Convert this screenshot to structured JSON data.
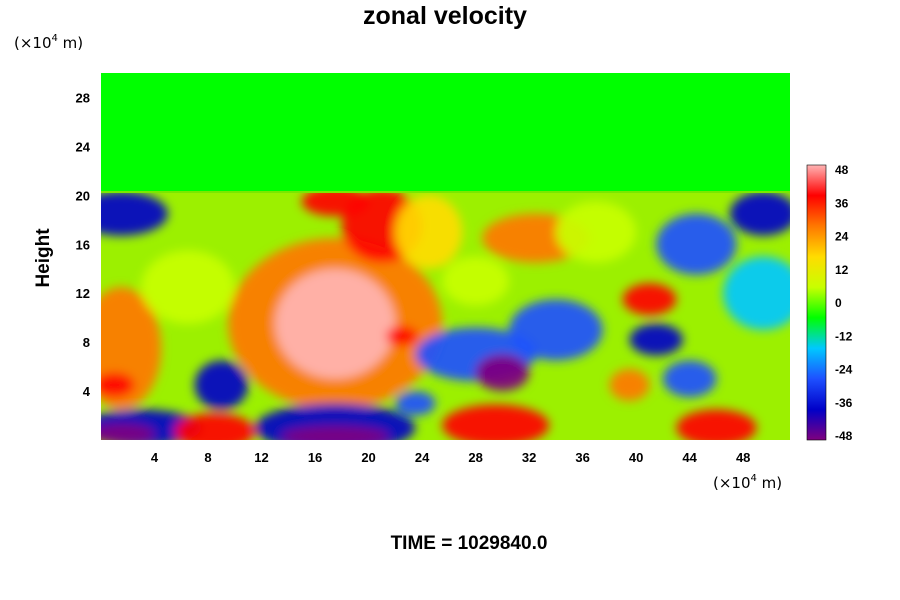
{
  "chart_data": {
    "type": "heatmap",
    "title": "zonal velocity",
    "ylabel": "Height",
    "xlabel": "",
    "x_unit": {
      "base": "(×10",
      "exp": "4",
      "tail": " m)"
    },
    "y_unit": {
      "base": "(×10",
      "exp": "4",
      "tail": " m)"
    },
    "x_ticks": [
      "4",
      "8",
      "12",
      "16",
      "20",
      "24",
      "28",
      "32",
      "36",
      "40",
      "44",
      "48"
    ],
    "y_ticks": [
      "4",
      "8",
      "12",
      "16",
      "20",
      "24",
      "28"
    ],
    "xlim": [
      0,
      51.5
    ],
    "ylim": [
      0,
      30
    ],
    "field_top_height": 20.5,
    "uniform_value_above": 0,
    "colorbar": {
      "ticks": [
        "48",
        "36",
        "24",
        "12",
        "0",
        "-12",
        "-24",
        "-36",
        "-48"
      ],
      "range": [
        -48,
        48
      ],
      "colors": [
        "#7f007f",
        "#0000c8",
        "#1e50ff",
        "#00c8ff",
        "#00ff00",
        "#c8ff00",
        "#ffdc00",
        "#ff7800",
        "#ff0000",
        "#ffb4b4"
      ]
    },
    "blobs": [
      {
        "x": 17.5,
        "y": 9.5,
        "rx": 4.5,
        "ry": 4.5,
        "value": 46
      },
      {
        "x": 17.5,
        "y": 9.5,
        "rx": 8,
        "ry": 7,
        "value": 30
      },
      {
        "x": 21,
        "y": 17.5,
        "rx": 3,
        "ry": 3,
        "value": 34
      },
      {
        "x": 17.5,
        "y": 19.5,
        "rx": 2.5,
        "ry": 1.2,
        "value": 40
      },
      {
        "x": 24.5,
        "y": 17,
        "rx": 2.5,
        "ry": 3,
        "value": 18
      },
      {
        "x": 32.5,
        "y": 16.5,
        "rx": 4,
        "ry": 2,
        "value": 28
      },
      {
        "x": 22.5,
        "y": 8.5,
        "rx": 1.2,
        "ry": 0.8,
        "value": 34
      },
      {
        "x": 28,
        "y": 7,
        "rx": 4.5,
        "ry": 2.2,
        "value": -30
      },
      {
        "x": 30,
        "y": 5.5,
        "rx": 2,
        "ry": 1.5,
        "value": -48
      },
      {
        "x": 34,
        "y": 9,
        "rx": 3.5,
        "ry": 2.5,
        "value": -22
      },
      {
        "x": 41,
        "y": 11.5,
        "rx": 2,
        "ry": 1.3,
        "value": 32
      },
      {
        "x": 41.5,
        "y": 8.2,
        "rx": 2,
        "ry": 1.3,
        "value": -38
      },
      {
        "x": 39.5,
        "y": 4.5,
        "rx": 1.5,
        "ry": 1.3,
        "value": 24
      },
      {
        "x": 44.5,
        "y": 16,
        "rx": 3,
        "ry": 2.5,
        "value": -28
      },
      {
        "x": 49.5,
        "y": 12,
        "rx": 3,
        "ry": 3,
        "value": -16
      },
      {
        "x": 44,
        "y": 5,
        "rx": 2,
        "ry": 1.5,
        "value": -22
      },
      {
        "x": 46,
        "y": 1,
        "rx": 3,
        "ry": 1.5,
        "value": 38
      },
      {
        "x": 49.5,
        "y": 18.5,
        "rx": 2.5,
        "ry": 1.8,
        "value": -36
      },
      {
        "x": 1.5,
        "y": 18.5,
        "rx": 3.5,
        "ry": 1.8,
        "value": -34
      },
      {
        "x": 9,
        "y": 4.5,
        "rx": 2,
        "ry": 2,
        "value": -34
      },
      {
        "x": 1.5,
        "y": 7.5,
        "rx": 3,
        "ry": 5,
        "value": 24
      },
      {
        "x": 1,
        "y": 4.5,
        "rx": 1.5,
        "ry": 1,
        "value": 36
      },
      {
        "x": 3,
        "y": 1,
        "rx": 4.5,
        "ry": 1.5,
        "value": -36
      },
      {
        "x": 1.5,
        "y": 0.5,
        "rx": 2.5,
        "ry": 0.8,
        "value": -48
      },
      {
        "x": 8.5,
        "y": 0.7,
        "rx": 3,
        "ry": 1.5,
        "value": 42
      },
      {
        "x": 17.5,
        "y": 1,
        "rx": 6,
        "ry": 2,
        "value": -38
      },
      {
        "x": 17.5,
        "y": 0.3,
        "rx": 4,
        "ry": 0.8,
        "value": -48
      },
      {
        "x": 29.5,
        "y": 1.2,
        "rx": 4,
        "ry": 1.7,
        "value": 42
      },
      {
        "x": 23.5,
        "y": 3,
        "rx": 1.5,
        "ry": 1,
        "value": -28
      },
      {
        "x": 6.5,
        "y": 12.5,
        "rx": 3.5,
        "ry": 3,
        "value": 8
      },
      {
        "x": 37,
        "y": 17,
        "rx": 3,
        "ry": 2.5,
        "value": 8
      },
      {
        "x": 28,
        "y": 13,
        "rx": 2.5,
        "ry": 2,
        "value": 4
      }
    ],
    "annotation": "TIME = 1029840.0"
  }
}
